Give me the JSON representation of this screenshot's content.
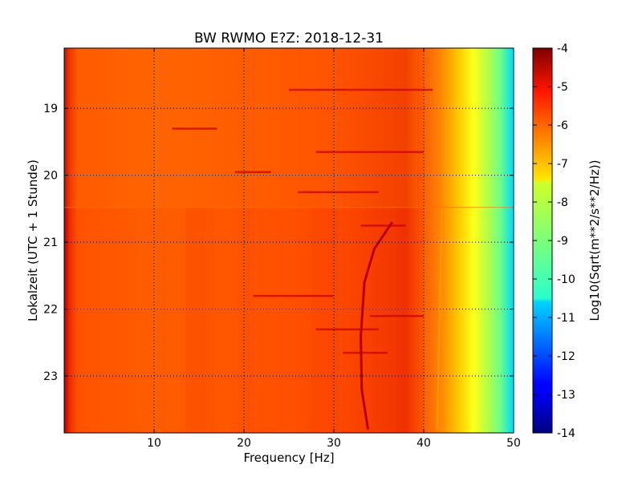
{
  "chart_data": {
    "type": "heatmap",
    "title": "BW RWMO E?Z: 2018-12-31",
    "xlabel": "Frequency [Hz]",
    "ylabel": "Lokalzeit (UTC + 1 Stunde)",
    "xlim": [
      0,
      50
    ],
    "ylim": [
      18.1,
      23.85
    ],
    "y_inverted": true,
    "x_ticks": [
      "10",
      "20",
      "30",
      "40",
      "50"
    ],
    "x_tick_values": [
      10,
      20,
      30,
      40,
      50
    ],
    "y_ticks": [
      "19",
      "20",
      "21",
      "22",
      "23"
    ],
    "y_tick_values": [
      19,
      20,
      21,
      22,
      23
    ],
    "grid": true,
    "colormap": "jet",
    "colorbar": {
      "label": "Log10(Sqrt(m**2/s**2/Hz))",
      "range": [
        -14,
        -4
      ],
      "ticks": [
        "-4",
        "-5",
        "-6",
        "-7",
        "-8",
        "-9",
        "-10",
        "-11",
        "-12",
        "-13",
        "-14"
      ],
      "tick_values": [
        -4,
        -5,
        -6,
        -7,
        -8,
        -9,
        -10,
        -11,
        -12,
        -13,
        -14
      ]
    },
    "spectral_profile": {
      "frequency_hz": [
        0,
        1,
        5,
        10,
        15,
        20,
        25,
        30,
        35,
        38,
        40,
        42,
        44,
        46,
        48,
        50
      ],
      "log10_amplitude": [
        -5.3,
        -6.1,
        -6.2,
        -6.2,
        -6.0,
        -6.0,
        -5.9,
        -5.8,
        -5.8,
        -5.6,
        -6.2,
        -6.6,
        -7.2,
        -8.0,
        -8.9,
        -10.3
      ]
    },
    "annotations": [
      {
        "label": "tone drifting with time",
        "freq_hz_start": 36.5,
        "freq_hz_end": 33.8,
        "time_start": 20.7,
        "time_end": 23.8
      },
      {
        "label": "tone near 41.5 Hz",
        "freq_hz": 41.5,
        "time_start": 20.5,
        "time_end": 23.8
      },
      {
        "label": "level change",
        "time": 20.48
      }
    ]
  }
}
